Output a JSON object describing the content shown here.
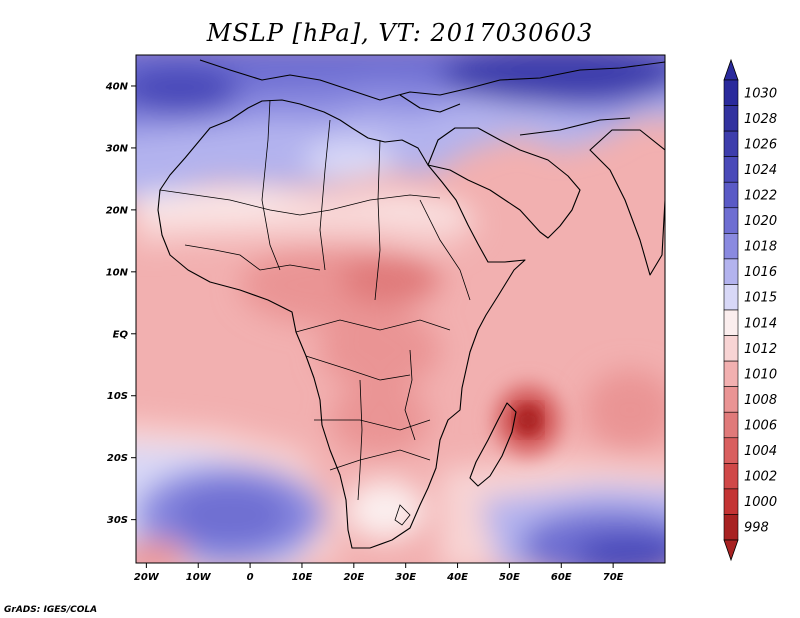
{
  "title": "MSLP [hPa], VT: 2017030603",
  "credit": "GrADS: IGES/COLA",
  "map": {
    "lon_range": [
      -22,
      80
    ],
    "lat_range": [
      -37,
      45
    ],
    "lon_ticks": [
      {
        "value": -20,
        "label": "20W"
      },
      {
        "value": -10,
        "label": "10W"
      },
      {
        "value": 0,
        "label": "0"
      },
      {
        "value": 10,
        "label": "10E"
      },
      {
        "value": 20,
        "label": "20E"
      },
      {
        "value": 30,
        "label": "30E"
      },
      {
        "value": 40,
        "label": "40E"
      },
      {
        "value": 50,
        "label": "50E"
      },
      {
        "value": 60,
        "label": "60E"
      },
      {
        "value": 70,
        "label": "70E"
      }
    ],
    "lat_ticks": [
      {
        "value": 40,
        "label": "40N"
      },
      {
        "value": 30,
        "label": "30N"
      },
      {
        "value": 20,
        "label": "20N"
      },
      {
        "value": 10,
        "label": "10N"
      },
      {
        "value": 0,
        "label": "EQ"
      },
      {
        "value": -10,
        "label": "10S"
      },
      {
        "value": -20,
        "label": "20S"
      },
      {
        "value": -30,
        "label": "30S"
      }
    ]
  },
  "colorbar": {
    "levels": [
      {
        "label": "1030",
        "color": "#2a2a9c"
      },
      {
        "label": "1028",
        "color": "#32329f"
      },
      {
        "label": "1026",
        "color": "#3d3dac"
      },
      {
        "label": "1024",
        "color": "#4a4ab9"
      },
      {
        "label": "1022",
        "color": "#5a5ac6"
      },
      {
        "label": "1020",
        "color": "#6e6ed2"
      },
      {
        "label": "1018",
        "color": "#8a8ae0"
      },
      {
        "label": "1016",
        "color": "#b3b3ee"
      },
      {
        "label": "1015",
        "color": "#d8d8f7"
      },
      {
        "label": "1014",
        "color": "#fbeeee"
      },
      {
        "label": "1012",
        "color": "#f8d4d4"
      },
      {
        "label": "1010",
        "color": "#f2b0b0"
      },
      {
        "label": "1008",
        "color": "#ea9494"
      },
      {
        "label": "1006",
        "color": "#e07a7a"
      },
      {
        "label": "1004",
        "color": "#d95f5f"
      },
      {
        "label": "1002",
        "color": "#d04848"
      },
      {
        "label": "1000",
        "color": "#c43434"
      },
      {
        "label": "998",
        "color": "#a82222"
      }
    ]
  }
}
